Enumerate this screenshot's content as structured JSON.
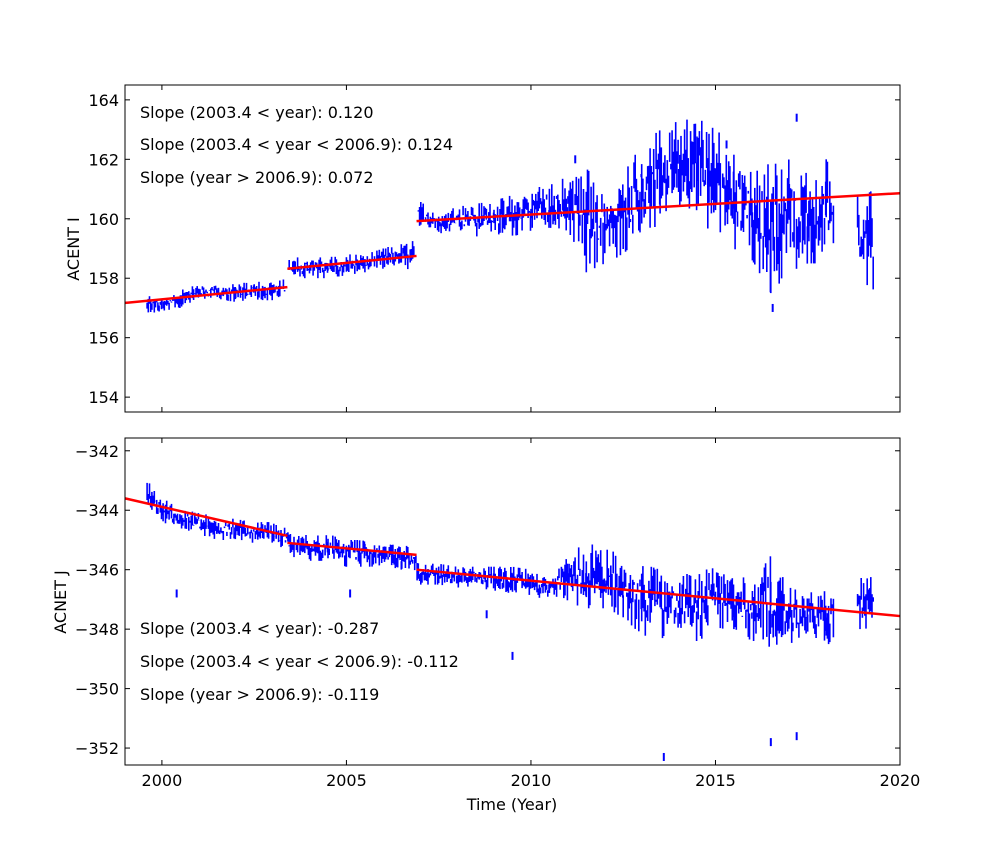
{
  "chart_data": [
    {
      "type": "line",
      "ylabel": "ACENT I",
      "xlabel": "",
      "xlim": [
        1999,
        2020
      ],
      "ylim": [
        153.5,
        164.5
      ],
      "xticks": [
        2000,
        2005,
        2010,
        2015,
        2020
      ],
      "yticks": [
        154,
        156,
        158,
        160,
        162,
        164
      ],
      "ytick_labels": [
        "154",
        "156",
        "158",
        "160",
        "162",
        "164"
      ],
      "grid": false,
      "data_color": "#0000ff",
      "fit_color": "#ff0000",
      "annotations": [
        "Slope (2003.4 < year):  0.120",
        "Slope (2003.4 <  year < 2006.9): 0.124",
        "Slope (year > 2006.9):  0.072"
      ],
      "data_envelope_columns": [
        "year",
        "min",
        "max"
      ],
      "data_envelope": [
        [
          1999.6,
          156.8,
          157.4
        ],
        [
          2000.0,
          156.9,
          157.4
        ],
        [
          2000.5,
          157.0,
          157.6
        ],
        [
          2001.0,
          157.2,
          157.8
        ],
        [
          2001.5,
          157.3,
          157.8
        ],
        [
          2002.0,
          157.2,
          157.8
        ],
        [
          2002.5,
          157.3,
          157.9
        ],
        [
          2003.0,
          157.2,
          157.9
        ],
        [
          2003.35,
          157.4,
          158.0
        ],
        [
          2003.45,
          158.0,
          158.8
        ],
        [
          2004.0,
          158.0,
          158.7
        ],
        [
          2004.5,
          158.0,
          158.7
        ],
        [
          2005.0,
          158.1,
          158.8
        ],
        [
          2005.5,
          158.2,
          158.8
        ],
        [
          2006.0,
          158.3,
          159.0
        ],
        [
          2006.5,
          158.4,
          159.2
        ],
        [
          2006.85,
          158.2,
          159.4
        ],
        [
          2006.95,
          159.6,
          160.6
        ],
        [
          2007.5,
          159.5,
          160.3
        ],
        [
          2008.0,
          159.6,
          160.4
        ],
        [
          2008.5,
          159.4,
          160.5
        ],
        [
          2009.0,
          159.5,
          160.6
        ],
        [
          2009.5,
          159.4,
          160.8
        ],
        [
          2010.0,
          159.6,
          161.0
        ],
        [
          2010.5,
          159.7,
          161.2
        ],
        [
          2011.0,
          159.6,
          161.4
        ],
        [
          2011.5,
          158.2,
          161.7
        ],
        [
          2012.0,
          158.5,
          161.0
        ],
        [
          2012.5,
          158.8,
          161.5
        ],
        [
          2013.0,
          159.5,
          162.5
        ],
        [
          2013.5,
          159.8,
          163.0
        ],
        [
          2014.0,
          160.0,
          163.3
        ],
        [
          2014.5,
          160.2,
          163.4
        ],
        [
          2015.0,
          159.3,
          163.0
        ],
        [
          2015.5,
          159.0,
          162.5
        ],
        [
          2016.0,
          158.6,
          162.0
        ],
        [
          2016.5,
          157.5,
          161.8
        ],
        [
          2017.0,
          158.2,
          162.0
        ],
        [
          2017.5,
          158.5,
          161.5
        ],
        [
          2018.0,
          158.5,
          162.0
        ],
        [
          2018.2,
          158.8,
          161.5
        ],
        [
          2018.85,
          158.0,
          161.0
        ],
        [
          2019.3,
          157.6,
          160.9
        ]
      ],
      "outliers": [
        [
          2016.55,
          157.0
        ],
        [
          2011.2,
          162.0
        ],
        [
          2017.2,
          163.4
        ],
        [
          2015.3,
          162.5
        ]
      ],
      "fit_segments": [
        {
          "x": [
            1999.0,
            2003.4
          ],
          "y": [
            157.17,
            157.7
          ]
        },
        {
          "x": [
            2003.4,
            2006.9
          ],
          "y": [
            158.32,
            158.75
          ]
        },
        {
          "x": [
            2006.9,
            2020.0
          ],
          "y": [
            159.92,
            160.86
          ]
        }
      ]
    },
    {
      "type": "line",
      "ylabel": "ACNET J",
      "xlabel": "Time (Year)",
      "xlim": [
        1999,
        2020
      ],
      "ylim": [
        -352.57,
        -341.57
      ],
      "xticks": [
        2000,
        2005,
        2010,
        2015,
        2020
      ],
      "xtick_labels": [
        "2000",
        "2005",
        "2010",
        "2015",
        "2020"
      ],
      "yticks": [
        -352,
        -350,
        -348,
        -346,
        -344,
        -342
      ],
      "ytick_labels": [
        "−352",
        "−350",
        "−348",
        "−346",
        "−344",
        "−342"
      ],
      "grid": false,
      "data_color": "#0000ff",
      "fit_color": "#ff0000",
      "annotations": [
        "Slope (2003.4 < year):  -0.287",
        "Slope (2003.4 <  year < 2006.9): -0.112",
        "Slope (year > 2006.9):  -0.119"
      ],
      "data_envelope_columns": [
        "year",
        "min",
        "max"
      ],
      "data_envelope": [
        [
          1999.6,
          -344.0,
          -343.0
        ],
        [
          2000.0,
          -344.4,
          -343.6
        ],
        [
          2000.5,
          -344.6,
          -343.9
        ],
        [
          2001.0,
          -344.8,
          -344.1
        ],
        [
          2001.5,
          -345.0,
          -344.2
        ],
        [
          2002.0,
          -345.0,
          -344.3
        ],
        [
          2002.5,
          -345.1,
          -344.4
        ],
        [
          2003.0,
          -345.2,
          -344.4
        ],
        [
          2003.35,
          -345.3,
          -344.6
        ],
        [
          2003.45,
          -345.6,
          -344.8
        ],
        [
          2004.0,
          -345.7,
          -344.8
        ],
        [
          2004.5,
          -345.7,
          -344.8
        ],
        [
          2005.0,
          -345.9,
          -345.0
        ],
        [
          2005.5,
          -345.9,
          -345.0
        ],
        [
          2006.0,
          -345.9,
          -345.1
        ],
        [
          2006.5,
          -346.0,
          -345.2
        ],
        [
          2006.85,
          -346.1,
          -345.2
        ],
        [
          2006.95,
          -346.5,
          -345.8
        ],
        [
          2007.5,
          -346.5,
          -345.8
        ],
        [
          2008.0,
          -346.6,
          -345.9
        ],
        [
          2008.5,
          -346.6,
          -345.9
        ],
        [
          2009.0,
          -346.7,
          -345.9
        ],
        [
          2009.5,
          -346.8,
          -345.9
        ],
        [
          2010.0,
          -346.9,
          -346.0
        ],
        [
          2010.5,
          -347.0,
          -346.1
        ],
        [
          2011.0,
          -347.1,
          -345.6
        ],
        [
          2011.5,
          -347.3,
          -345.0
        ],
        [
          2012.0,
          -347.3,
          -345.3
        ],
        [
          2012.5,
          -347.6,
          -345.5
        ],
        [
          2013.0,
          -348.2,
          -345.8
        ],
        [
          2013.5,
          -348.3,
          -346.0
        ],
        [
          2014.0,
          -348.3,
          -346.1
        ],
        [
          2014.5,
          -348.4,
          -346.2
        ],
        [
          2015.0,
          -348.1,
          -345.8
        ],
        [
          2015.5,
          -348.0,
          -346.0
        ],
        [
          2016.0,
          -348.5,
          -346.5
        ],
        [
          2016.5,
          -348.6,
          -345.5
        ],
        [
          2017.0,
          -348.5,
          -346.6
        ],
        [
          2017.5,
          -348.2,
          -346.8
        ],
        [
          2018.0,
          -348.6,
          -346.6
        ],
        [
          2018.2,
          -348.3,
          -346.8
        ],
        [
          2018.85,
          -348.0,
          -346.3
        ],
        [
          2019.3,
          -348.0,
          -346.2
        ]
      ],
      "outliers": [
        [
          2000.4,
          -346.8
        ],
        [
          2005.1,
          -346.8
        ],
        [
          2008.8,
          -347.5
        ],
        [
          2009.5,
          -348.9
        ],
        [
          2013.6,
          -352.3
        ],
        [
          2016.5,
          -351.8
        ],
        [
          2017.2,
          -351.6
        ]
      ],
      "fit_segments": [
        {
          "x": [
            1999.0,
            2003.4
          ],
          "y": [
            -343.6,
            -344.86
          ]
        },
        {
          "x": [
            2003.4,
            2006.9
          ],
          "y": [
            -345.1,
            -345.5
          ]
        },
        {
          "x": [
            2006.9,
            2020.0
          ],
          "y": [
            -346.0,
            -347.56
          ]
        }
      ]
    }
  ]
}
